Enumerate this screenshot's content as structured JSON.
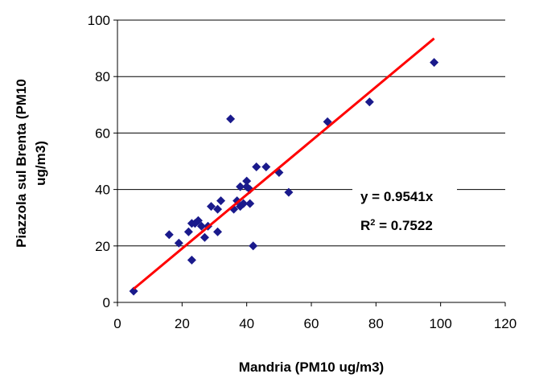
{
  "chart_data": {
    "type": "scatter",
    "xlabel": "Mandria (PM10 ug/m3)",
    "ylabel_lines": [
      "Piazzola sul Brenta (PM10",
      "ug/m3)"
    ],
    "xlim": [
      0,
      120
    ],
    "ylim": [
      0,
      100
    ],
    "x_ticks": [
      0,
      20,
      40,
      60,
      80,
      100,
      120
    ],
    "y_ticks": [
      0,
      20,
      40,
      60,
      80,
      100
    ],
    "grid": "horizontal",
    "marker": "diamond",
    "marker_color": "#1a1a8c",
    "trendline": {
      "slope": 0.9541,
      "x_range": [
        5,
        98
      ],
      "color": "#ff0000",
      "equation": "y = 0.9541x",
      "r2_prefix": "R",
      "r2_sup": "2",
      "r2_value": " = 0.7522"
    },
    "points": [
      [
        5,
        4
      ],
      [
        16,
        24
      ],
      [
        19,
        21
      ],
      [
        22,
        25
      ],
      [
        23,
        15
      ],
      [
        23,
        28
      ],
      [
        24,
        28
      ],
      [
        25,
        29
      ],
      [
        26,
        27
      ],
      [
        27,
        23
      ],
      [
        28,
        27
      ],
      [
        29,
        34
      ],
      [
        31,
        25
      ],
      [
        31,
        33
      ],
      [
        32,
        36
      ],
      [
        35,
        65
      ],
      [
        36,
        33
      ],
      [
        37,
        36
      ],
      [
        38,
        34
      ],
      [
        38,
        41
      ],
      [
        39,
        35
      ],
      [
        40,
        41
      ],
      [
        40,
        43
      ],
      [
        41,
        35
      ],
      [
        41,
        40
      ],
      [
        42,
        20
      ],
      [
        43,
        48
      ],
      [
        46,
        48
      ],
      [
        50,
        46
      ],
      [
        53,
        39
      ],
      [
        65,
        64
      ],
      [
        78,
        71
      ],
      [
        98,
        85
      ]
    ]
  }
}
